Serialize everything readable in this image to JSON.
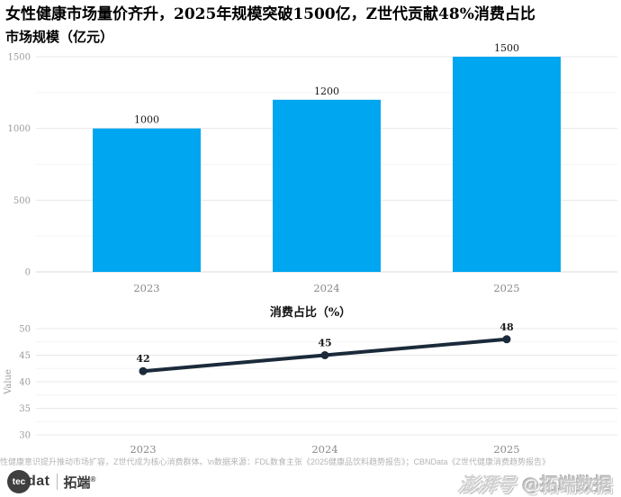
{
  "page": {
    "title": "女性健康市场量价齐升，2025年规模突破1500亿，Z世代贡献48%消费占比",
    "footer_note": "性健康意识提升推动市场扩容，Z世代成为核心消费群体。\\n数据来源：FDL数食主张《2025健康品饮料趋势报告》；CBNData《Z世代健康消费趋势报告》",
    "brand": {
      "logo_circle": "tec",
      "logo_rest": "dat",
      "logo_cn": "拓端",
      "reg_mark": "®"
    },
    "watermark": {
      "platform": "澎湃号",
      "handle": "@拓端数据"
    }
  },
  "chart_data": [
    {
      "type": "bar",
      "title": "市场规模（亿元）",
      "categories": [
        "2023",
        "2024",
        "2025"
      ],
      "values": [
        1000,
        1200,
        1500
      ],
      "ylim": [
        0,
        1500
      ],
      "yticks": [
        0,
        500,
        1000,
        1500
      ],
      "grid_step": 250,
      "bar_color": "#01A6F0",
      "data_labels": true,
      "legend": "none",
      "grid": true
    },
    {
      "type": "line",
      "title": "消费占比（%）",
      "ylabel": "Value",
      "categories": [
        "2023",
        "2024",
        "2025"
      ],
      "values": [
        42,
        45,
        48
      ],
      "ylim": [
        30,
        50
      ],
      "yticks": [
        30,
        35,
        40,
        45,
        50
      ],
      "grid_step": 2.5,
      "line_color": "#1B2A3A",
      "marker_color": "#1B2A3A",
      "data_labels": true,
      "legend": "none",
      "grid": true
    }
  ],
  "colors": {
    "grid_major": "#e8e8e8",
    "grid_minor": "#f4f4f4",
    "axis_zero": "#d8d8d8",
    "tick_label": "#9b9b9b",
    "category_label": "#8a8a8a",
    "value_label": "#1a1a1a"
  }
}
